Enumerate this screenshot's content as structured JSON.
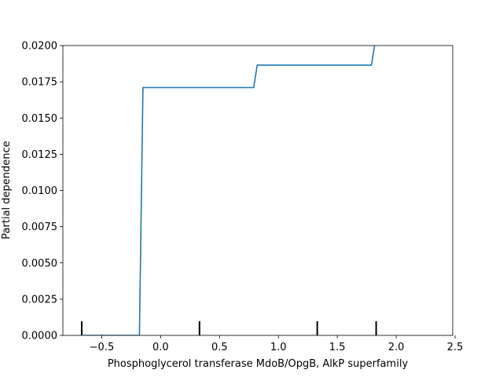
{
  "chart_data": {
    "type": "line",
    "title": "",
    "xlabel": "Phosphoglycerol transferase MdoB/OpgB, AlkP superfamily",
    "ylabel": "Partial dependence",
    "xlim": [
      -0.83,
      2.48
    ],
    "ylim": [
      0.0,
      0.02
    ],
    "grid": false,
    "legend": "none",
    "line_color": "#1f77b4",
    "x_ticks": [
      -0.5,
      0.0,
      0.5,
      1.0,
      1.5,
      2.0,
      2.5
    ],
    "x_tick_labels": [
      "−0.5",
      "0.0",
      "0.5",
      "1.0",
      "1.5",
      "2.0",
      "2.5"
    ],
    "y_ticks": [
      0.0,
      0.0025,
      0.005,
      0.0075,
      0.01,
      0.0125,
      0.015,
      0.0175,
      0.02
    ],
    "y_tick_labels": [
      "0.0000",
      "0.0025",
      "0.0050",
      "0.0075",
      "0.0100",
      "0.0125",
      "0.0150",
      "0.0175",
      "0.0200"
    ],
    "series": [
      {
        "x": [
          -0.68,
          -0.18,
          -0.15,
          0.34,
          0.79,
          0.82,
          1.34,
          1.79,
          1.82
        ],
        "y": [
          0.0,
          0.0,
          0.0171,
          0.0171,
          0.0171,
          0.01865,
          0.01865,
          0.01865,
          0.0202
        ]
      }
    ],
    "rug_x": [
      -0.67,
      0.33,
      1.33,
      1.83
    ]
  }
}
